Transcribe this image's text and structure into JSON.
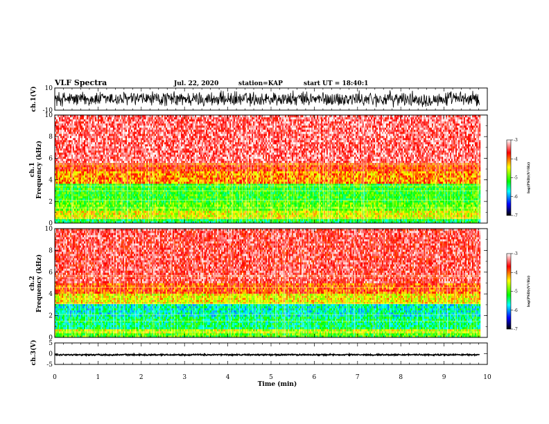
{
  "header": {
    "title": "VLF Spectra",
    "date": "Jul. 22, 2020",
    "station": "station=KAP",
    "start": "start UT = 18:40:1"
  },
  "colorbar": {
    "label": "log(PSD)(V²/Hz)",
    "ticks": [
      "-3",
      "-4",
      "-5",
      "-6",
      "-7"
    ]
  },
  "colors": {
    "waveform": "#000000",
    "scale": [
      "#ffffff",
      "#ff0000",
      "#ffff00",
      "#00ff00",
      "#00ffff",
      "#0000ff",
      "#000000"
    ]
  },
  "chart_data": [
    {
      "type": "line",
      "name": "ch1-waveform",
      "ylabel": "ch.1(V)",
      "ylim": [
        -10,
        10
      ],
      "yticks": [
        "10",
        "-10"
      ],
      "xlim": [
        0,
        10
      ],
      "x_range_data": [
        0,
        9.82
      ],
      "y_amplitude_typical": 8
    },
    {
      "type": "heatmap",
      "name": "ch1-spectrogram",
      "ylabel": "ch.1 Frequency (kHz)",
      "ylim": [
        0,
        10
      ],
      "yticks": [
        "0",
        "2",
        "4",
        "6",
        "8",
        "10"
      ],
      "xlim": [
        0,
        10
      ],
      "x_range_data": [
        0,
        9.82
      ],
      "color_scale": [
        -7,
        -3
      ],
      "bands": [
        {
          "from_khz": 0,
          "to_khz": 0.3,
          "level": -5.3
        },
        {
          "from_khz": 0.3,
          "to_khz": 1.1,
          "level": -4.5
        },
        {
          "from_khz": 1.1,
          "to_khz": 2.0,
          "level": -4.9
        },
        {
          "from_khz": 2.0,
          "to_khz": 3.6,
          "level": -5.1
        },
        {
          "from_khz": 3.6,
          "to_khz": 4.8,
          "level": -4.1
        },
        {
          "from_khz": 4.8,
          "to_khz": 5.5,
          "level": -3.8
        },
        {
          "from_khz": 5.5,
          "to_khz": 10,
          "level": -3.4
        }
      ],
      "tones_khz": [
        0.45,
        1.4,
        2.1,
        3.0,
        3.45,
        5.4,
        5.55
      ]
    },
    {
      "type": "heatmap",
      "name": "ch2-spectrogram",
      "ylabel": "ch.2 Frequency (kHz)",
      "ylim": [
        0,
        10
      ],
      "yticks": [
        "0",
        "2",
        "4",
        "6",
        "8",
        "10"
      ],
      "xlim": [
        0,
        10
      ],
      "x_range_data": [
        0,
        9.82
      ],
      "color_scale": [
        -7,
        -3
      ],
      "bands": [
        {
          "from_khz": 0,
          "to_khz": 0.3,
          "level": -5.0
        },
        {
          "from_khz": 0.3,
          "to_khz": 0.8,
          "level": -4.6
        },
        {
          "from_khz": 0.8,
          "to_khz": 2.0,
          "level": -5.4
        },
        {
          "from_khz": 2.0,
          "to_khz": 3.1,
          "level": -5.6
        },
        {
          "from_khz": 3.1,
          "to_khz": 4.0,
          "level": -4.4
        },
        {
          "from_khz": 4.0,
          "to_khz": 5.0,
          "level": -3.9
        },
        {
          "from_khz": 5.0,
          "to_khz": 10,
          "level": -3.5
        }
      ],
      "tones_khz": [
        0.5,
        1.5,
        2.1,
        3.1,
        4.6,
        5.55,
        5.7
      ]
    },
    {
      "type": "line",
      "name": "ch3-waveform",
      "ylabel": "ch.3(V)",
      "ylim": [
        -5,
        5
      ],
      "yticks": [
        "5",
        "0",
        "-5"
      ],
      "xlim": [
        0,
        10
      ],
      "x_range_data": [
        0,
        9.82
      ],
      "y_center": -0.5,
      "y_amplitude_typical": 0.4
    }
  ],
  "xaxis": {
    "label": "Time (min)",
    "ticks": [
      "0",
      "1",
      "2",
      "3",
      "4",
      "5",
      "6",
      "7",
      "8",
      "9",
      "10"
    ]
  }
}
